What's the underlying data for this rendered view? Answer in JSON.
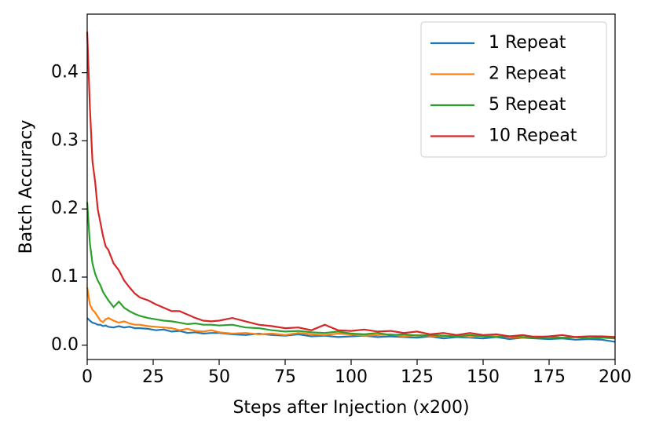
{
  "chart_data": {
    "type": "line",
    "xlabel": "Steps after Injection (x200)",
    "ylabel": "Batch Accuracy",
    "x": [
      0,
      1,
      2,
      3,
      4,
      5,
      6,
      7,
      8,
      10,
      12,
      14,
      16,
      18,
      20,
      23,
      26,
      29,
      32,
      35,
      38,
      41,
      44,
      47,
      50,
      55,
      60,
      65,
      70,
      75,
      80,
      85,
      90,
      95,
      100,
      105,
      110,
      115,
      120,
      125,
      130,
      135,
      140,
      145,
      150,
      155,
      160,
      165,
      170,
      175,
      180,
      185,
      190,
      195,
      200
    ],
    "series": [
      {
        "name": "1 Repeat",
        "color": "#1f77b4",
        "values": [
          0.04,
          0.036,
          0.033,
          0.032,
          0.03,
          0.03,
          0.028,
          0.029,
          0.027,
          0.026,
          0.028,
          0.026,
          0.027,
          0.025,
          0.025,
          0.024,
          0.022,
          0.023,
          0.02,
          0.021,
          0.018,
          0.019,
          0.017,
          0.018,
          0.018,
          0.016,
          0.015,
          0.017,
          0.015,
          0.014,
          0.016,
          0.013,
          0.014,
          0.012,
          0.013,
          0.014,
          0.012,
          0.013,
          0.012,
          0.011,
          0.013,
          0.01,
          0.012,
          0.011,
          0.01,
          0.012,
          0.009,
          0.011,
          0.01,
          0.009,
          0.01,
          0.008,
          0.009,
          0.008,
          0.005
        ]
      },
      {
        "name": "2 Repeat",
        "color": "#ff7f0e",
        "values": [
          0.085,
          0.06,
          0.052,
          0.048,
          0.042,
          0.036,
          0.034,
          0.038,
          0.04,
          0.036,
          0.033,
          0.035,
          0.032,
          0.03,
          0.03,
          0.028,
          0.027,
          0.026,
          0.025,
          0.022,
          0.024,
          0.021,
          0.02,
          0.022,
          0.019,
          0.017,
          0.018,
          0.016,
          0.017,
          0.015,
          0.018,
          0.016,
          0.015,
          0.017,
          0.016,
          0.014,
          0.015,
          0.016,
          0.013,
          0.015,
          0.014,
          0.013,
          0.015,
          0.012,
          0.014,
          0.013,
          0.012,
          0.011,
          0.013,
          0.012,
          0.011,
          0.012,
          0.01,
          0.011,
          0.012
        ]
      },
      {
        "name": "5 Repeat",
        "color": "#2ca02c",
        "values": [
          0.21,
          0.15,
          0.12,
          0.105,
          0.095,
          0.088,
          0.078,
          0.072,
          0.066,
          0.056,
          0.064,
          0.055,
          0.05,
          0.046,
          0.043,
          0.04,
          0.038,
          0.036,
          0.035,
          0.033,
          0.031,
          0.032,
          0.03,
          0.03,
          0.029,
          0.03,
          0.026,
          0.025,
          0.022,
          0.02,
          0.021,
          0.019,
          0.018,
          0.02,
          0.017,
          0.016,
          0.018,
          0.015,
          0.016,
          0.014,
          0.015,
          0.014,
          0.013,
          0.015,
          0.013,
          0.012,
          0.013,
          0.012,
          0.011,
          0.012,
          0.011,
          0.012,
          0.01,
          0.011,
          0.01
        ]
      },
      {
        "name": "10 Repeat",
        "color": "#d62728",
        "values": [
          0.46,
          0.35,
          0.27,
          0.24,
          0.2,
          0.18,
          0.16,
          0.145,
          0.14,
          0.12,
          0.11,
          0.095,
          0.085,
          0.076,
          0.07,
          0.066,
          0.06,
          0.055,
          0.05,
          0.05,
          0.045,
          0.04,
          0.036,
          0.035,
          0.036,
          0.04,
          0.035,
          0.03,
          0.028,
          0.025,
          0.026,
          0.022,
          0.03,
          0.022,
          0.021,
          0.023,
          0.02,
          0.021,
          0.018,
          0.02,
          0.016,
          0.018,
          0.015,
          0.018,
          0.015,
          0.016,
          0.013,
          0.015,
          0.012,
          0.013,
          0.015,
          0.012,
          0.013,
          0.013,
          0.012
        ]
      }
    ],
    "xlim": [
      0,
      200
    ],
    "xticks": [
      0,
      25,
      50,
      75,
      100,
      125,
      150,
      175,
      200
    ],
    "ylim": [
      -0.021,
      0.486
    ],
    "yticks": [
      {
        "value": 0,
        "label": "0.0"
      },
      0.1,
      0.2,
      0.3,
      0.4
    ],
    "legend": "upper right"
  }
}
